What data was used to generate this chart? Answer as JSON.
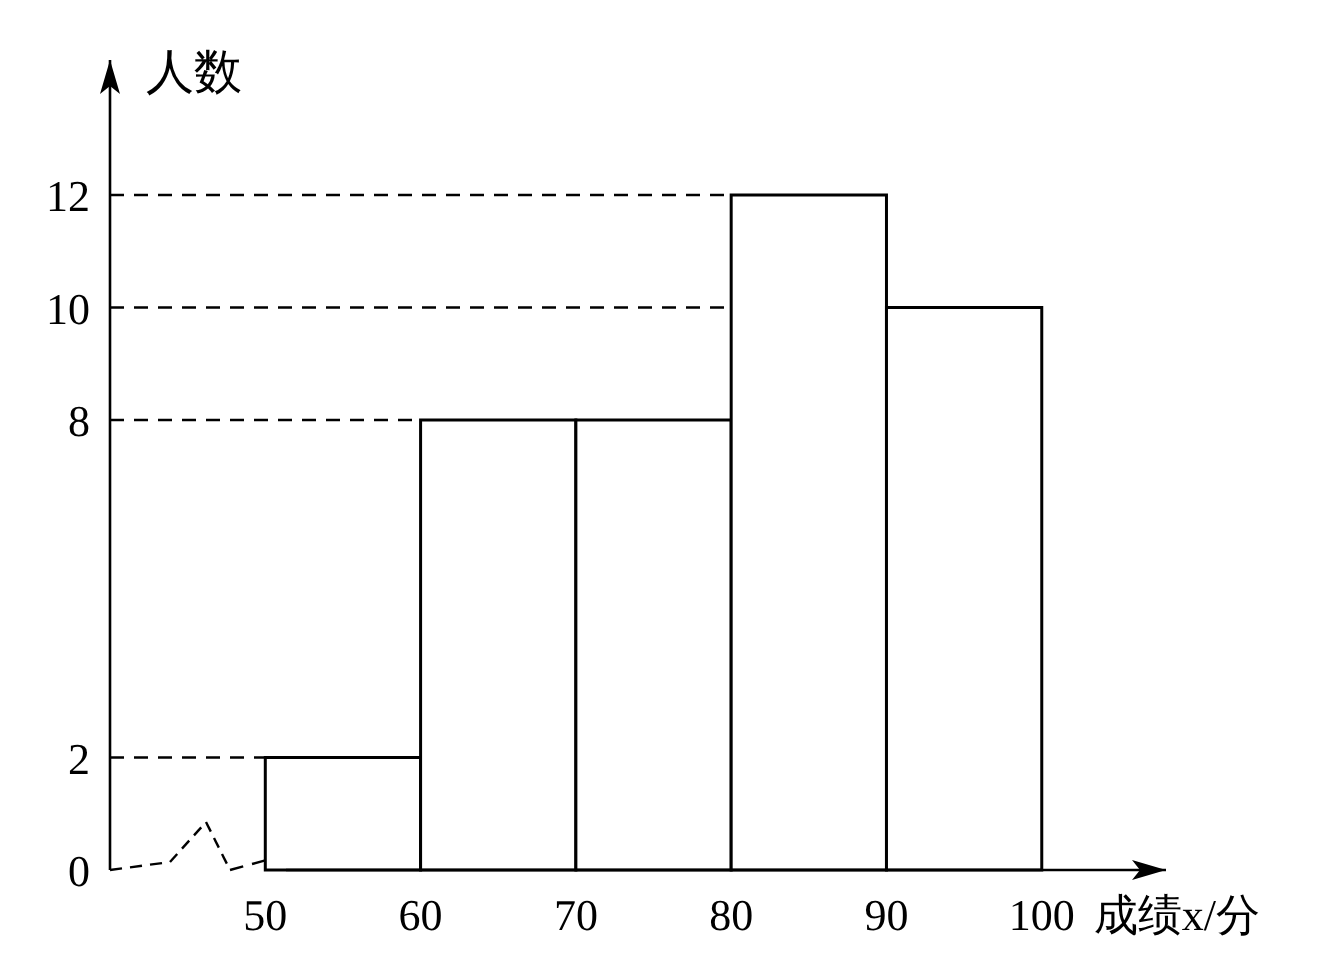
{
  "chart_data": {
    "type": "histogram",
    "ylabel": "人数",
    "xlabel": "成绩x/分",
    "bins": [
      50,
      60,
      70,
      80,
      90,
      100
    ],
    "values": [
      2,
      8,
      8,
      12,
      10
    ],
    "color": "#ffffff",
    "xlim": [
      40,
      108
    ],
    "ylim": [
      0,
      14.4
    ],
    "xticks": [
      50,
      60,
      70,
      80,
      90,
      100
    ],
    "yticks": [
      0,
      2,
      8,
      10,
      12
    ],
    "ref_lines": [
      {
        "axis": "y",
        "value": 2,
        "line_style": "dashed"
      },
      {
        "axis": "y",
        "value": 8,
        "line_style": "dashed"
      },
      {
        "axis": "y",
        "value": 10,
        "line_style": "dashed"
      },
      {
        "axis": "y",
        "value": 12,
        "line_style": "dashed"
      }
    ],
    "grid": false
  }
}
